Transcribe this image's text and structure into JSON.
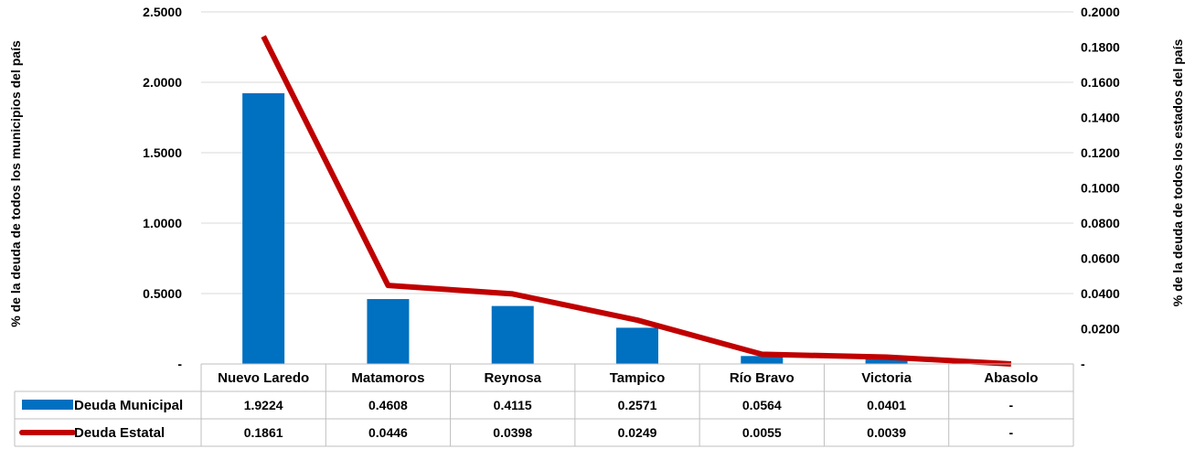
{
  "colors": {
    "municipal": "#0070C0",
    "estatal": "#C00000",
    "grid": "#D9D9D9",
    "table_border": "#BFBFBF"
  },
  "chart_data": {
    "type": "bar",
    "categories": [
      "Nuevo Laredo",
      "Matamoros",
      "Reynosa",
      "Tampico",
      "Río Bravo",
      "Victoria",
      "Abasolo"
    ],
    "series": [
      {
        "name": "Deuda Municipal",
        "type": "bar",
        "axis": "left",
        "values": [
          1.9224,
          0.4608,
          0.4115,
          0.2571,
          0.0564,
          0.0401,
          0
        ],
        "labels": [
          "1.9224",
          "0.4608",
          "0.4115",
          "0.2571",
          "0.0564",
          "0.0401",
          "-"
        ]
      },
      {
        "name": "Deuda Estatal",
        "type": "line",
        "axis": "right",
        "values": [
          0.1861,
          0.0446,
          0.0398,
          0.0249,
          0.0055,
          0.0039,
          0
        ],
        "labels": [
          "0.1861",
          "0.0446",
          "0.0398",
          "0.0249",
          "0.0055",
          "0.0039",
          "-"
        ]
      }
    ],
    "ylabel": "% de la deuda  de todos los municipios del país",
    "y2label": "% de la deuda de todos los estados del país",
    "ylim": [
      0,
      2.5
    ],
    "y2lim": [
      0,
      0.2
    ],
    "yticks": [
      "-",
      "0.5000",
      "1.0000",
      "1.5000",
      "2.0000",
      "2.5000"
    ],
    "y2ticks": [
      "-",
      "0.0200",
      "0.0400",
      "0.0600",
      "0.0800",
      "0.1000",
      "0.1200",
      "0.1400",
      "0.1600",
      "0.1800",
      "0.2000"
    ],
    "grid": true,
    "data_table": true
  }
}
